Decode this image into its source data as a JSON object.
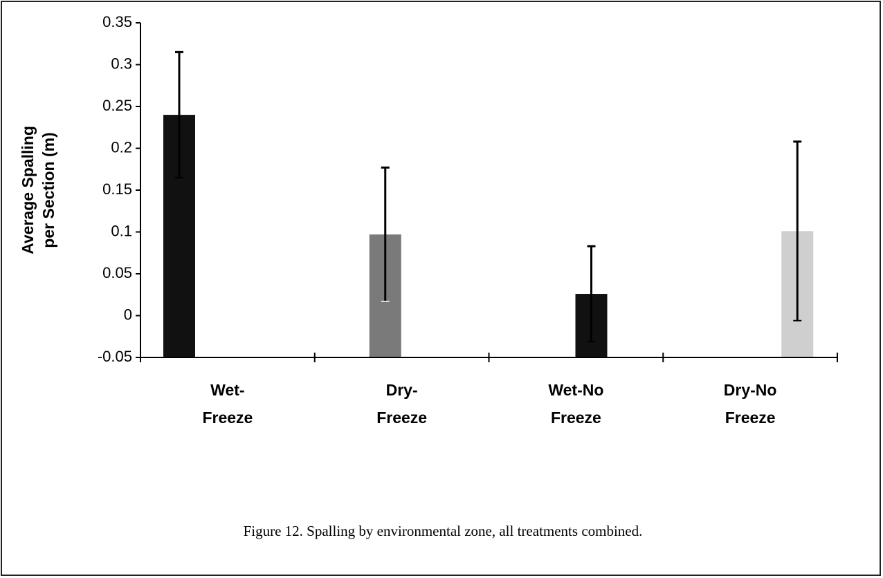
{
  "chart_data": {
    "type": "bar",
    "y_label": [
      "Average Spalling",
      "per Section  (m)"
    ],
    "categories": [
      [
        "Wet-",
        "Freeze"
      ],
      [
        "Dry-",
        "Freeze"
      ],
      [
        "Wet-No",
        "Freeze"
      ],
      [
        "Dry-No",
        "Freeze"
      ]
    ],
    "values": [
      0.24,
      0.097,
      0.026,
      0.101
    ],
    "errors": [
      0.075,
      0.08,
      0.057,
      0.107
    ],
    "colors": [
      "#111111",
      "#7a7a7a",
      "#111111",
      "#cfcfcf"
    ],
    "ylim": [
      -0.05,
      0.35
    ],
    "yticks": [
      -0.05,
      0,
      0.05,
      0.1,
      0.15,
      0.2,
      0.25,
      0.3,
      0.35
    ],
    "grid": false,
    "caption": "Figure 12. Spalling by environmental zone, all treatments combined."
  }
}
